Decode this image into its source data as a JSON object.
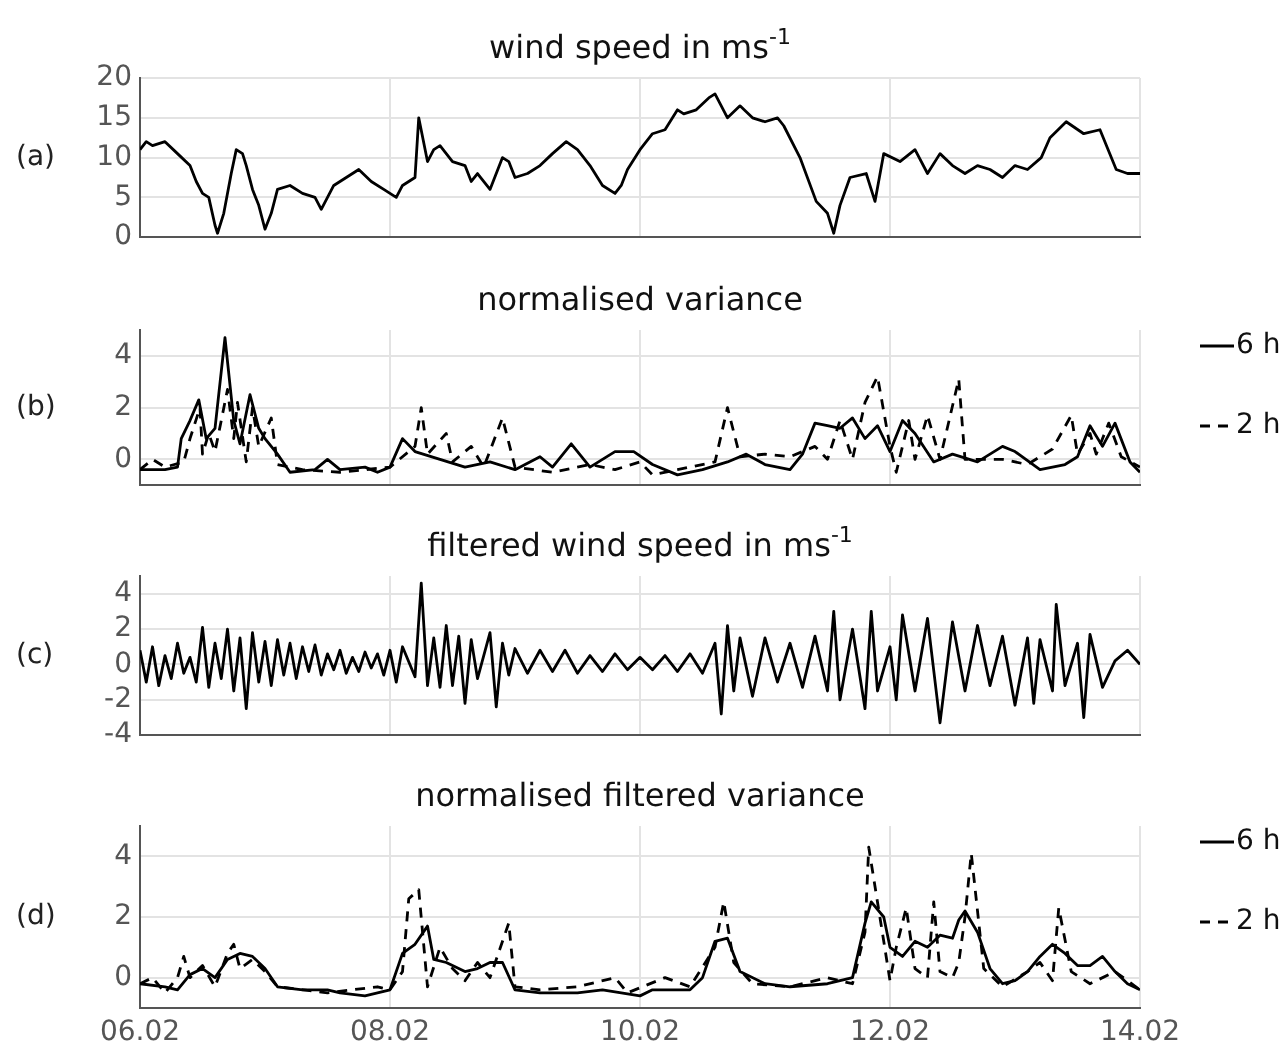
{
  "chart_data": [
    {
      "type": "line",
      "title": "wind speed in ms$^{-1}$",
      "ylabel": "(a)",
      "color": "#000000",
      "x": [
        "--02-06T00:00",
        "--02-06T01:12",
        "--02-06T02:24",
        "--02-06T04:48",
        "--02-06T07:12",
        "--02-06T09:36",
        "--02-06T10:48",
        "--02-06T12:00",
        "--02-06T13:12",
        "--02-06T14:24",
        "--02-06T14:53",
        "--02-06T16:05",
        "--02-06T17:31",
        "--02-06T18:29",
        "--02-06T19:41",
        "--02-06T20:24",
        "--02-06T21:36",
        "--02-06T22:48",
        "--02-07T00:00",
        "--02-07T01:12",
        "--02-07T02:24",
        "--02-07T04:48",
        "--02-07T07:12",
        "--02-07T09:36",
        "--02-07T10:48",
        "--02-07T13:12",
        "--02-07T15:36",
        "--02-07T18:00",
        "--02-07T20:24",
        "--02-07T22:48",
        "--02-08T01:12",
        "--02-08T02:24",
        "--02-08T04:48",
        "--02-08T05:31",
        "--02-08T07:12",
        "--02-08T08:24",
        "--02-08T09:36",
        "--02-08T12:00",
        "--02-08T14:24",
        "--02-08T15:36",
        "--02-08T16:48",
        "--02-08T19:12",
        "--02-08T21:36",
        "--02-08T22:48",
        "--02-09T00:00",
        "--02-09T02:24",
        "--02-09T04:48",
        "--02-09T07:12",
        "--02-09T09:50",
        "--02-09T12:00",
        "--02-09T14:24",
        "--02-09T16:48",
        "--02-09T19:12",
        "--02-09T20:24",
        "--02-09T21:36",
        "--02-10T00:00",
        "--02-10T02:24",
        "--02-10T04:48",
        "--02-10T07:12",
        "--02-10T08:24",
        "--02-10T10:48",
        "--02-10T13:12",
        "--02-10T14:24",
        "--02-10T16:48",
        "--02-10T19:12",
        "--02-10T21:36",
        "--02-11T00:00",
        "--02-11T02:24",
        "--02-11T03:36",
        "--02-11T06:43",
        "--02-11T09:50",
        "--02-11T12:00",
        "--02-11T13:12",
        "--02-11T14:24",
        "--02-11T16:19",
        "--02-11T19:26",
        "--02-11T21:07",
        "--02-11T22:48",
        "--02-12T01:55",
        "--02-12T04:48",
        "--02-12T07:12",
        "--02-12T09:36",
        "--02-12T12:00",
        "--02-12T14:24",
        "--02-12T16:48",
        "--02-12T19:12",
        "--02-12T21:36",
        "--02-13T00:00",
        "--02-13T02:24",
        "--02-13T05:02",
        "--02-13T06:43",
        "--02-13T09:50",
        "--02-13T13:12",
        "--02-13T16:19",
        "--02-13T19:26",
        "--02-13T21:36",
        "--02-14T00:00"
      ],
      "values": [
        11,
        12,
        11.5,
        12,
        10.5,
        9,
        7,
        5.5,
        5,
        1.5,
        0.5,
        3,
        8,
        11,
        10.5,
        9,
        6,
        4,
        1,
        3,
        6,
        6.5,
        5.5,
        5,
        3.5,
        6.5,
        7.5,
        8.5,
        7,
        6,
        5,
        6.5,
        7.5,
        15,
        9.5,
        11,
        11.5,
        9.5,
        9,
        7,
        8,
        6,
        10,
        9.5,
        7.5,
        8,
        9,
        10.5,
        12,
        11,
        9,
        6.5,
        5.5,
        6.5,
        8.5,
        11,
        13,
        13.5,
        16,
        15.5,
        16,
        17.5,
        18,
        15,
        16.5,
        15,
        14.5,
        15,
        14,
        10,
        4.5,
        3,
        0.5,
        4,
        7.5,
        8,
        4.5,
        10.5,
        9.5,
        11,
        8,
        10.5,
        9,
        8,
        9,
        8.5,
        7.5,
        9,
        8.5,
        10,
        12.5,
        14.5,
        13,
        13.5,
        8.5,
        8,
        8
      ],
      "xlim": [
        "--02-06",
        "--02-14"
      ],
      "xticks": [
        {
          "value": "--02-06",
          "label": null
        },
        {
          "value": "--02-08",
          "label": null
        },
        {
          "value": "--02-10",
          "label": null
        },
        {
          "value": "--02-12",
          "label": null
        },
        {
          "value": "--02-14",
          "label": null
        }
      ],
      "ylim": [
        0,
        20
      ],
      "yticks": [
        0,
        5,
        10,
        15,
        20
      ],
      "grid": true,
      "tick_labels": "y"
    },
    {
      "type": "line",
      "title": "normalised variance",
      "ylabel": "(b)",
      "legend": "right",
      "series": [
        {
          "name": "6 h",
          "color": "#000000",
          "line_style": "solid",
          "x": [
            "--02-06T00:00",
            "--02-06T04:48",
            "--02-06T07:12",
            "--02-06T07:55",
            "--02-06T09:36",
            "--02-06T11:17",
            "--02-06T12:43",
            "--02-06T14:24",
            "--02-06T16:19",
            "--02-06T18:00",
            "--02-06T19:12",
            "--02-06T21:07",
            "--02-06T22:48",
            "--02-07T00:00",
            "--02-07T02:24",
            "--02-07T04:48",
            "--02-07T09:36",
            "--02-07T12:00",
            "--02-07T14:24",
            "--02-07T19:12",
            "--02-07T21:36",
            "--02-08T00:00",
            "--02-08T02:24",
            "--02-08T04:48",
            "--02-08T09:36",
            "--02-08T14:24",
            "--02-08T19:12",
            "--02-09T00:00",
            "--02-09T04:48",
            "--02-09T07:12",
            "--02-09T10:48",
            "--02-09T14:24",
            "--02-09T19:12",
            "--02-09T22:48",
            "--02-10T02:24",
            "--02-10T07:12",
            "--02-10T12:00",
            "--02-10T16:48",
            "--02-10T20:24",
            "--02-11T00:00",
            "--02-11T04:48",
            "--02-11T07:12",
            "--02-11T09:36",
            "--02-11T12:00",
            "--02-11T14:24",
            "--02-11T16:48",
            "--02-11T19:12",
            "--02-11T21:36",
            "--02-12T00:00",
            "--02-12T02:24",
            "--02-12T04:48",
            "--02-12T08:24",
            "--02-12T12:00",
            "--02-12T16:48",
            "--02-12T21:36",
            "--02-13T00:00",
            "--02-13T04:48",
            "--02-13T09:36",
            "--02-13T12:00",
            "--02-13T14:24",
            "--02-13T16:48",
            "--02-13T19:12",
            "--02-13T22:05",
            "--02-14T00:00"
          ],
          "values": [
            -0.4,
            -0.4,
            -0.3,
            0.8,
            1.5,
            2.3,
            0.8,
            1.2,
            4.7,
            1.5,
            0.6,
            2.5,
            1.2,
            0.8,
            0.2,
            -0.5,
            -0.4,
            0,
            -0.4,
            -0.3,
            -0.5,
            -0.3,
            0.8,
            0.3,
            0,
            -0.3,
            -0.1,
            -0.4,
            0.1,
            -0.3,
            0.6,
            -0.3,
            0.3,
            0.3,
            -0.2,
            -0.6,
            -0.4,
            -0.1,
            0.2,
            -0.2,
            -0.4,
            0.2,
            1.4,
            1.3,
            1.2,
            1.6,
            0.8,
            1.3,
            0.3,
            1.5,
            1,
            -0.1,
            0.2,
            -0.1,
            0.5,
            0.3,
            -0.4,
            -0.2,
            0.1,
            1.3,
            0.5,
            1.4,
            -0.1,
            -0.5
          ]
        },
        {
          "name": "2 h",
          "color": "#000000",
          "line_style": "dashed",
          "x": [
            "--02-06T00:00",
            "--02-06T02:24",
            "--02-06T04:48",
            "--02-06T08:24",
            "--02-06T09:36",
            "--02-06T11:31",
            "--02-06T12:00",
            "--02-06T13:12",
            "--02-06T14:24",
            "--02-06T16:48",
            "--02-06T18:00",
            "--02-06T18:43",
            "--02-06T20:24",
            "--02-06T21:36",
            "--02-06T22:48",
            "--02-07T01:12",
            "--02-07T02:24",
            "--02-07T07:12",
            "--02-07T14:24",
            "--02-08T00:00",
            "--02-08T04:48",
            "--02-08T06:00",
            "--02-08T07:12",
            "--02-08T10:48",
            "--02-08T12:00",
            "--02-08T15:36",
            "--02-08T18:00",
            "--02-08T21:36",
            "--02-09T00:00",
            "--02-09T07:12",
            "--02-09T14:24",
            "--02-09T19:12",
            "--02-10T00:00",
            "--02-10T02:24",
            "--02-10T07:12",
            "--02-10T14:24",
            "--02-10T16:48",
            "--02-10T19:12",
            "--02-11T00:00",
            "--02-11T04:48",
            "--02-11T09:36",
            "--02-11T12:00",
            "--02-11T14:24",
            "--02-11T16:48",
            "--02-11T19:12",
            "--02-11T21:36",
            "--02-12T00:00",
            "--02-12T01:12",
            "--02-12T03:36",
            "--02-12T04:48",
            "--02-12T07:12",
            "--02-12T09:36",
            "--02-12T13:12",
            "--02-12T14:24",
            "--02-12T21:36",
            "--02-13T02:24",
            "--02-13T07:12",
            "--02-13T10:48",
            "--02-13T12:00",
            "--02-13T14:24",
            "--02-13T15:36",
            "--02-13T18:00",
            "--02-13T20:24",
            "--02-14T00:00"
          ],
          "values": [
            -0.4,
            0,
            -0.3,
            -0.1,
            0.8,
            2,
            0.2,
            1,
            0.3,
            2.7,
            0.8,
            2.2,
            -0.1,
            2,
            0.5,
            1.6,
            -0.2,
            -0.4,
            -0.5,
            -0.3,
            0.5,
            2,
            0.2,
            1,
            -0.1,
            0.5,
            -0.3,
            1.6,
            -0.3,
            -0.5,
            -0.2,
            -0.4,
            -0.1,
            -0.6,
            -0.4,
            -0.1,
            2,
            0.1,
            0.2,
            0.1,
            0.5,
            0,
            1.5,
            0,
            2.2,
            3.2,
            0.5,
            -0.5,
            1.5,
            0,
            1.7,
            0,
            3.1,
            0,
            0,
            -0.2,
            0.4,
            1.7,
            0.2,
            1,
            0.2,
            1.4,
            0.1,
            -0.3
          ]
        }
      ],
      "xlim": [
        "--02-06",
        "--02-14"
      ],
      "xticks": [
        {
          "value": "--02-06",
          "label": null
        },
        {
          "value": "--02-08",
          "label": null
        },
        {
          "value": "--02-10",
          "label": null
        },
        {
          "value": "--02-12",
          "label": null
        },
        {
          "value": "--02-14",
          "label": null
        }
      ],
      "ylim": [
        -1,
        5
      ],
      "yticks": [
        0,
        2,
        4
      ],
      "grid": true,
      "tick_labels": "y"
    },
    {
      "type": "line",
      "title": "filtered wind speed in ms$^{-1}$",
      "ylabel": "(c)",
      "color": "#000000",
      "x": [
        "--02-06T00:00",
        "--02-06T01:12",
        "--02-06T02:24",
        "--02-06T03:36",
        "--02-06T04:48",
        "--02-06T06:00",
        "--02-06T07:12",
        "--02-06T08:24",
        "--02-06T09:36",
        "--02-06T10:48",
        "--02-06T12:00",
        "--02-06T13:12",
        "--02-06T14:24",
        "--02-06T15:36",
        "--02-06T16:48",
        "--02-06T18:00",
        "--02-06T19:12",
        "--02-06T20:24",
        "--02-06T21:36",
        "--02-06T22:48",
        "--02-07T00:00",
        "--02-07T01:12",
        "--02-07T02:24",
        "--02-07T03:36",
        "--02-07T04:48",
        "--02-07T06:00",
        "--02-07T07:12",
        "--02-07T08:24",
        "--02-07T09:36",
        "--02-07T10:48",
        "--02-07T12:00",
        "--02-07T13:12",
        "--02-07T14:24",
        "--02-07T15:36",
        "--02-07T16:48",
        "--02-07T18:00",
        "--02-07T19:12",
        "--02-07T20:24",
        "--02-07T21:36",
        "--02-07T22:48",
        "--02-08T00:00",
        "--02-08T01:12",
        "--02-08T02:24",
        "--02-08T04:48",
        "--02-08T06:00",
        "--02-08T07:12",
        "--02-08T08:24",
        "--02-08T09:36",
        "--02-08T10:48",
        "--02-08T12:00",
        "--02-08T13:12",
        "--02-08T14:24",
        "--02-08T15:36",
        "--02-08T16:48",
        "--02-08T19:12",
        "--02-08T20:24",
        "--02-08T21:36",
        "--02-08T22:48",
        "--02-09T00:00",
        "--02-09T02:24",
        "--02-09T04:48",
        "--02-09T07:12",
        "--02-09T09:36",
        "--02-09T12:00",
        "--02-09T14:24",
        "--02-09T16:48",
        "--02-09T19:12",
        "--02-09T21:36",
        "--02-10T00:00",
        "--02-10T02:24",
        "--02-10T04:48",
        "--02-10T07:12",
        "--02-10T09:36",
        "--02-10T12:00",
        "--02-10T14:24",
        "--02-10T15:36",
        "--02-10T16:48",
        "--02-10T18:00",
        "--02-10T19:12",
        "--02-10T21:36",
        "--02-11T00:00",
        "--02-11T02:24",
        "--02-11T04:48",
        "--02-11T07:12",
        "--02-11T09:36",
        "--02-11T12:00",
        "--02-11T13:12",
        "--02-11T14:24",
        "--02-11T16:48",
        "--02-11T19:12",
        "--02-11T20:24",
        "--02-11T21:36",
        "--02-12T00:00",
        "--02-12T01:12",
        "--02-12T02:24",
        "--02-12T04:48",
        "--02-12T07:12",
        "--02-12T09:36",
        "--02-12T12:00",
        "--02-12T14:24",
        "--02-12T16:48",
        "--02-12T19:12",
        "--02-12T21:36",
        "--02-13T00:00",
        "--02-13T02:24",
        "--02-13T03:36",
        "--02-13T04:48",
        "--02-13T07:12",
        "--02-13T07:55",
        "--02-13T09:36",
        "--02-13T12:00",
        "--02-13T13:12",
        "--02-13T14:24",
        "--02-13T16:48",
        "--02-13T19:12",
        "--02-13T21:36",
        "--02-14T00:00"
      ],
      "values": [
        0.8,
        -1,
        1,
        -1.2,
        0.5,
        -0.8,
        1.2,
        -0.5,
        0.4,
        -1,
        2.1,
        -1.3,
        1.2,
        -0.8,
        2,
        -1.5,
        1.5,
        -2.5,
        1.8,
        -1,
        1.3,
        -1.2,
        1.4,
        -0.6,
        1.2,
        -0.8,
        1,
        -0.4,
        1.1,
        -0.6,
        0.6,
        -0.3,
        0.8,
        -0.5,
        0.4,
        -0.4,
        0.7,
        -0.2,
        0.6,
        -0.6,
        0.8,
        -1,
        1,
        -0.7,
        4.6,
        -1.2,
        1.5,
        -1.3,
        2.2,
        -1.2,
        1.6,
        -2.2,
        1.4,
        -0.8,
        1.8,
        -2.4,
        1.2,
        -0.6,
        0.9,
        -0.5,
        0.8,
        -0.4,
        0.8,
        -0.5,
        0.5,
        -0.4,
        0.6,
        -0.3,
        0.4,
        -0.3,
        0.5,
        -0.4,
        0.6,
        -0.5,
        1.2,
        -2.8,
        2.2,
        -1.5,
        1.5,
        -1.8,
        1.5,
        -1,
        1.2,
        -1.3,
        1.6,
        -1.5,
        3,
        -2,
        2,
        -2.5,
        3,
        -1.5,
        1,
        -2,
        2.8,
        -1.5,
        2.6,
        -3.3,
        2.4,
        -1.5,
        2.2,
        -1.2,
        1.6,
        -2.3,
        1.5,
        -2.2,
        1.4,
        -1.5,
        3.4,
        -1.2,
        1.2,
        -3,
        1.7,
        -1.3,
        0.2,
        0.8,
        0
      ],
      "xlim": [
        "--02-06",
        "--02-14"
      ],
      "xticks": [
        {
          "value": "--02-06",
          "label": null
        },
        {
          "value": "--02-08",
          "label": null
        },
        {
          "value": "--02-10",
          "label": null
        },
        {
          "value": "--02-12",
          "label": null
        },
        {
          "value": "--02-14",
          "label": null
        }
      ],
      "ylim": [
        -4,
        5
      ],
      "yticks": [
        -4,
        -2,
        0,
        2,
        4
      ],
      "grid": true,
      "tick_labels": "y"
    },
    {
      "type": "line",
      "title": "normalised filtered variance",
      "ylabel": "(d)",
      "legend": "right",
      "series": [
        {
          "name": "6 h",
          "color": "#000000",
          "line_style": "solid",
          "x": [
            "--02-06T00:00",
            "--02-06T04:48",
            "--02-06T07:12",
            "--02-06T09:36",
            "--02-06T12:00",
            "--02-06T14:24",
            "--02-06T16:48",
            "--02-06T19:12",
            "--02-06T21:36",
            "--02-07T00:00",
            "--02-07T02:24",
            "--02-07T07:12",
            "--02-07T12:00",
            "--02-07T14:24",
            "--02-07T19:12",
            "--02-08T00:00",
            "--02-08T02:24",
            "--02-08T04:48",
            "--02-08T07:12",
            "--02-08T08:24",
            "--02-08T10:48",
            "--02-08T14:24",
            "--02-08T16:48",
            "--02-08T19:12",
            "--02-08T21:36",
            "--02-09T00:00",
            "--02-09T04:48",
            "--02-09T12:00",
            "--02-09T16:48",
            "--02-10T00:00",
            "--02-10T02:24",
            "--02-10T09:36",
            "--02-10T12:00",
            "--02-10T14:24",
            "--02-10T16:48",
            "--02-10T19:12",
            "--02-11T00:00",
            "--02-11T04:48",
            "--02-11T12:00",
            "--02-11T16:48",
            "--02-11T19:12",
            "--02-11T20:24",
            "--02-11T22:48",
            "--02-12T00:00",
            "--02-12T02:24",
            "--02-12T04:48",
            "--02-12T07:12",
            "--02-12T09:36",
            "--02-12T12:00",
            "--02-12T13:12",
            "--02-12T14:24",
            "--02-12T16:48",
            "--02-12T19:12",
            "--02-12T21:36",
            "--02-13T00:00",
            "--02-13T02:24",
            "--02-13T04:48",
            "--02-13T07:12",
            "--02-13T09:36",
            "--02-13T12:00",
            "--02-13T14:24",
            "--02-13T16:48",
            "--02-13T19:12",
            "--02-13T21:36",
            "--02-14T00:00"
          ],
          "values": [
            -0.2,
            -0.3,
            -0.4,
            0.1,
            0.3,
            0,
            0.6,
            0.8,
            0.7,
            0.3,
            -0.3,
            -0.4,
            -0.4,
            -0.5,
            -0.6,
            -0.4,
            0.8,
            1.1,
            1.7,
            0.6,
            0.5,
            0.2,
            0.3,
            0.5,
            0.5,
            -0.4,
            -0.5,
            -0.5,
            -0.4,
            -0.6,
            -0.4,
            -0.4,
            0,
            1.2,
            1.3,
            0.2,
            -0.2,
            -0.3,
            -0.2,
            0,
            1.8,
            2.5,
            2,
            1,
            0.7,
            1.2,
            1,
            1.4,
            1.3,
            1.9,
            2.2,
            1.5,
            0.3,
            -0.2,
            -0.1,
            0.2,
            0.7,
            1.1,
            0.8,
            0.4,
            0.4,
            0.7,
            0.2,
            -0.2,
            -0.4
          ]
        },
        {
          "name": "2 h",
          "color": "#000000",
          "line_style": "dashed",
          "x": [
            "--02-06T00:00",
            "--02-06T02:24",
            "--02-06T04:48",
            "--02-06T07:12",
            "--02-06T08:24",
            "--02-06T09:36",
            "--02-06T12:00",
            "--02-06T14:24",
            "--02-06T16:48",
            "--02-06T18:00",
            "--02-06T19:12",
            "--02-06T21:36",
            "--02-07T00:00",
            "--02-07T02:24",
            "--02-07T12:00",
            "--02-07T21:36",
            "--02-08T00:00",
            "--02-08T02:24",
            "--02-08T03:36",
            "--02-08T05:31",
            "--02-08T07:12",
            "--02-08T09:36",
            "--02-08T12:00",
            "--02-08T14:24",
            "--02-08T16:48",
            "--02-08T19:12",
            "--02-08T22:48",
            "--02-09T00:00",
            "--02-09T04:48",
            "--02-09T12:00",
            "--02-09T19:12",
            "--02-09T21:36",
            "--02-10T04:48",
            "--02-10T09:36",
            "--02-10T14:24",
            "--02-10T16:05",
            "--02-10T18:00",
            "--02-10T21:36",
            "--02-11T04:48",
            "--02-11T12:00",
            "--02-11T16:48",
            "--02-11T19:12",
            "--02-11T19:55",
            "--02-11T22:48",
            "--02-12T00:00",
            "--02-12T01:12",
            "--02-12T03:07",
            "--02-12T04:48",
            "--02-12T07:12",
            "--02-12T08:24",
            "--02-12T09:36",
            "--02-12T12:00",
            "--02-12T13:12",
            "--02-12T14:24",
            "--02-12T15:36",
            "--02-12T18:00",
            "--02-12T21:36",
            "--02-13T02:24",
            "--02-13T04:48",
            "--02-13T07:12",
            "--02-13T08:24",
            "--02-13T10:48",
            "--02-13T14:24",
            "--02-13T19:12",
            "--02-14T00:00"
          ],
          "values": [
            -0.2,
            0,
            -0.5,
            0,
            0.7,
            0,
            0.4,
            -0.3,
            0.8,
            1.1,
            0.3,
            0.6,
            0.2,
            -0.3,
            -0.5,
            -0.3,
            -0.4,
            0.2,
            2.6,
            2.9,
            -0.3,
            1,
            0.3,
            -0.1,
            0.5,
            0,
            1.8,
            -0.3,
            -0.4,
            -0.3,
            0,
            -0.5,
            0,
            -0.3,
            1,
            2.5,
            0.5,
            -0.2,
            -0.3,
            0,
            -0.2,
            1.5,
            4.3,
            1.2,
            -0.1,
            1,
            2.3,
            0.3,
            0,
            2.5,
            0.2,
            0,
            0.5,
            2,
            4.1,
            0.3,
            -0.3,
            0.2,
            0.5,
            -0.1,
            2.3,
            0.2,
            -0.2,
            0.2,
            -0.4
          ]
        }
      ],
      "xlim": [
        "--02-06",
        "--02-14"
      ],
      "xticks": [
        {
          "value": "--02-06",
          "label": "06.02"
        },
        {
          "value": "--02-08",
          "label": "08.02"
        },
        {
          "value": "--02-10",
          "label": "10.02"
        },
        {
          "value": "--02-12",
          "label": "12.02"
        },
        {
          "value": "--02-14",
          "label": "14.02"
        }
      ],
      "ylim": [
        -1,
        5
      ],
      "yticks": [
        0,
        2,
        4
      ],
      "grid": true
    }
  ]
}
